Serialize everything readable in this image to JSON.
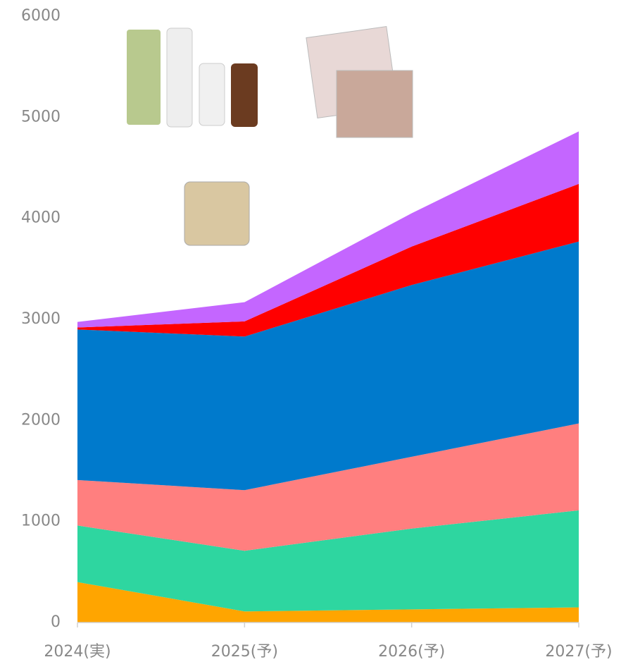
{
  "chart_data": {
    "type": "stacked_area",
    "categories": [
      "2024(実)",
      "2025(予)",
      "2026(予)",
      "2027(予)"
    ],
    "series": [
      {
        "color": "#FFA500",
        "values": [
          400,
          110,
          130,
          150
        ]
      },
      {
        "color": "#2ED6A0",
        "values": [
          560,
          600,
          800,
          960
        ]
      },
      {
        "color": "#FF7F7F",
        "values": [
          450,
          600,
          710,
          860
        ]
      },
      {
        "color": "#007ACC",
        "values": [
          1490,
          1520,
          1700,
          1800
        ]
      },
      {
        "color": "#FF0000",
        "values": [
          20,
          150,
          380,
          570
        ]
      },
      {
        "color": "#C466FF",
        "values": [
          55,
          190,
          330,
          520
        ]
      }
    ],
    "ylim": [
      0,
      6000
    ],
    "yticks": [
      0,
      1000,
      2000,
      3000,
      4000,
      5000,
      6000
    ],
    "grid": false
  }
}
